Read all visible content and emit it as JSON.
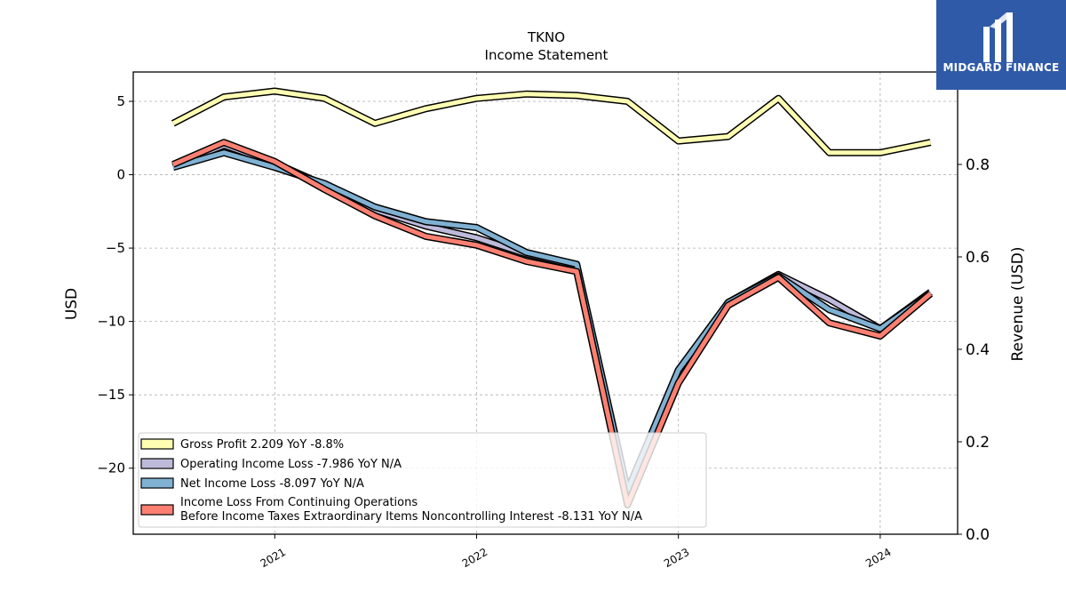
{
  "chart_data": {
    "type": "line",
    "title": "TKNO",
    "subtitle": "Income Statement",
    "ylabel": "USD",
    "y2label": "Revenue (USD)",
    "ylim": [
      -24.5,
      7
    ],
    "y2lim": [
      0,
      1.0
    ],
    "yticks": [
      5,
      0,
      -5,
      -10,
      -15,
      -20
    ],
    "y2ticks": [
      0.8,
      0.6,
      0.4,
      0.2,
      0.0
    ],
    "xticks": [
      {
        "label": "2021",
        "date": "2021-01-01"
      },
      {
        "label": "2022",
        "date": "2022-01-01"
      },
      {
        "label": "2023",
        "date": "2023-01-01"
      },
      {
        "label": "2024",
        "date": "2024-01-01"
      }
    ],
    "xlim": [
      "2020-04-20",
      "2024-05-20"
    ],
    "x": [
      "2020-07-01",
      "2020-10-01",
      "2021-01-01",
      "2021-04-01",
      "2021-07-01",
      "2021-10-01",
      "2022-01-01",
      "2022-04-01",
      "2022-07-01",
      "2022-10-01",
      "2023-01-01",
      "2023-04-01",
      "2023-07-01",
      "2023-10-01",
      "2024-01-01",
      "2024-04-01"
    ],
    "grid": true,
    "legend_position": "lower-left",
    "series": [
      {
        "name": "Gross Profit",
        "legend_label": "Gross Profit  2.209 YoY -8.8%",
        "color": "#ffffb3",
        "values": [
          3.5,
          5.3,
          5.7,
          5.2,
          3.5,
          4.5,
          5.2,
          5.5,
          5.4,
          5.0,
          2.3,
          2.6,
          5.2,
          1.5,
          1.5,
          2.2
        ]
      },
      {
        "name": "Operating Income Loss",
        "legend_label": "Operating Income Loss  -7.986 YoY N/A",
        "color": "#bebada",
        "values": [
          0.6,
          2.0,
          0.8,
          -0.7,
          -2.4,
          -3.5,
          -4.3,
          -5.4,
          -6.2,
          -21.8,
          -13.5,
          -8.7,
          -6.8,
          -8.5,
          -10.5,
          -8.0
        ]
      },
      {
        "name": "Net Income Loss",
        "legend_label": "Net Income Loss  -8.097 YoY N/A",
        "color": "#80b1d3",
        "values": [
          0.5,
          1.5,
          0.5,
          -0.6,
          -2.2,
          -3.2,
          -3.6,
          -5.3,
          -6.1,
          -21.5,
          -13.3,
          -8.7,
          -6.9,
          -9.2,
          -10.5,
          -8.1
        ]
      },
      {
        "name": "Income Loss From Continuing Operations Before Income Taxes Extraordinary Items Noncontrolling Interest",
        "legend_label_line1": "Income Loss From Continuing Operations",
        "legend_label_line2": "Before Income Taxes Extraordinary Items Noncontrolling Interest  -8.131 YoY N/A",
        "color": "#fb8072",
        "values": [
          0.7,
          2.2,
          0.9,
          -1.0,
          -2.8,
          -4.2,
          -4.8,
          -5.9,
          -6.6,
          -22.5,
          -14.2,
          -8.9,
          -7.0,
          -10.1,
          -11.0,
          -8.1
        ]
      }
    ]
  },
  "logo": {
    "text": "MIDGARD FINANCE"
  }
}
